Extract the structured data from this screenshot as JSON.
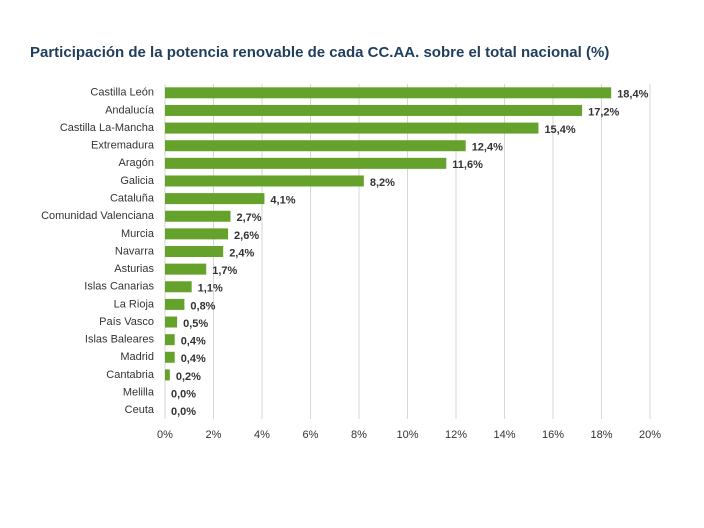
{
  "chart_data": {
    "type": "bar",
    "orientation": "horizontal",
    "title": "Participación de la potencia renovable de cada CC.AA. sobre el total nacional (%)",
    "categories": [
      "Castilla León",
      "Andalucía",
      "Castilla La-Mancha",
      "Extremadura",
      "Aragón",
      "Galicia",
      "Cataluña",
      "Comunidad Valenciana",
      "Murcia",
      "Navarra",
      "Asturias",
      "Islas Canarias",
      "La Rioja",
      "País Vasco",
      "Islas Baleares",
      "Madrid",
      "Cantabria",
      "Melilla",
      "Ceuta"
    ],
    "values": [
      18.4,
      17.2,
      15.4,
      12.4,
      11.6,
      8.2,
      4.1,
      2.7,
      2.6,
      2.4,
      1.7,
      1.1,
      0.8,
      0.5,
      0.4,
      0.4,
      0.2,
      0.0,
      0.0
    ],
    "value_labels": [
      "18,4%",
      "17,2%",
      "15,4%",
      "12,4%",
      "11,6%",
      "8,2%",
      "4,1%",
      "2,7%",
      "2,6%",
      "2,4%",
      "1,7%",
      "1,1%",
      "0,8%",
      "0,5%",
      "0,4%",
      "0,4%",
      "0,2%",
      "0,0%",
      "0,0%"
    ],
    "color": "#65a22b",
    "xlim": [
      0,
      20
    ],
    "xticks": [
      {
        "value": 0,
        "label": "0%"
      },
      {
        "value": 2,
        "label": "2%"
      },
      {
        "value": 4,
        "label": "4%"
      },
      {
        "value": 6,
        "label": "6%"
      },
      {
        "value": 8,
        "label": "8%"
      },
      {
        "value": 10,
        "label": "10%"
      },
      {
        "value": 12,
        "label": "12%"
      },
      {
        "value": 14,
        "label": "14%"
      },
      {
        "value": 16,
        "label": "16%"
      },
      {
        "value": 18,
        "label": "18%"
      },
      {
        "value": 20,
        "label": "20%"
      }
    ],
    "grid": true
  }
}
